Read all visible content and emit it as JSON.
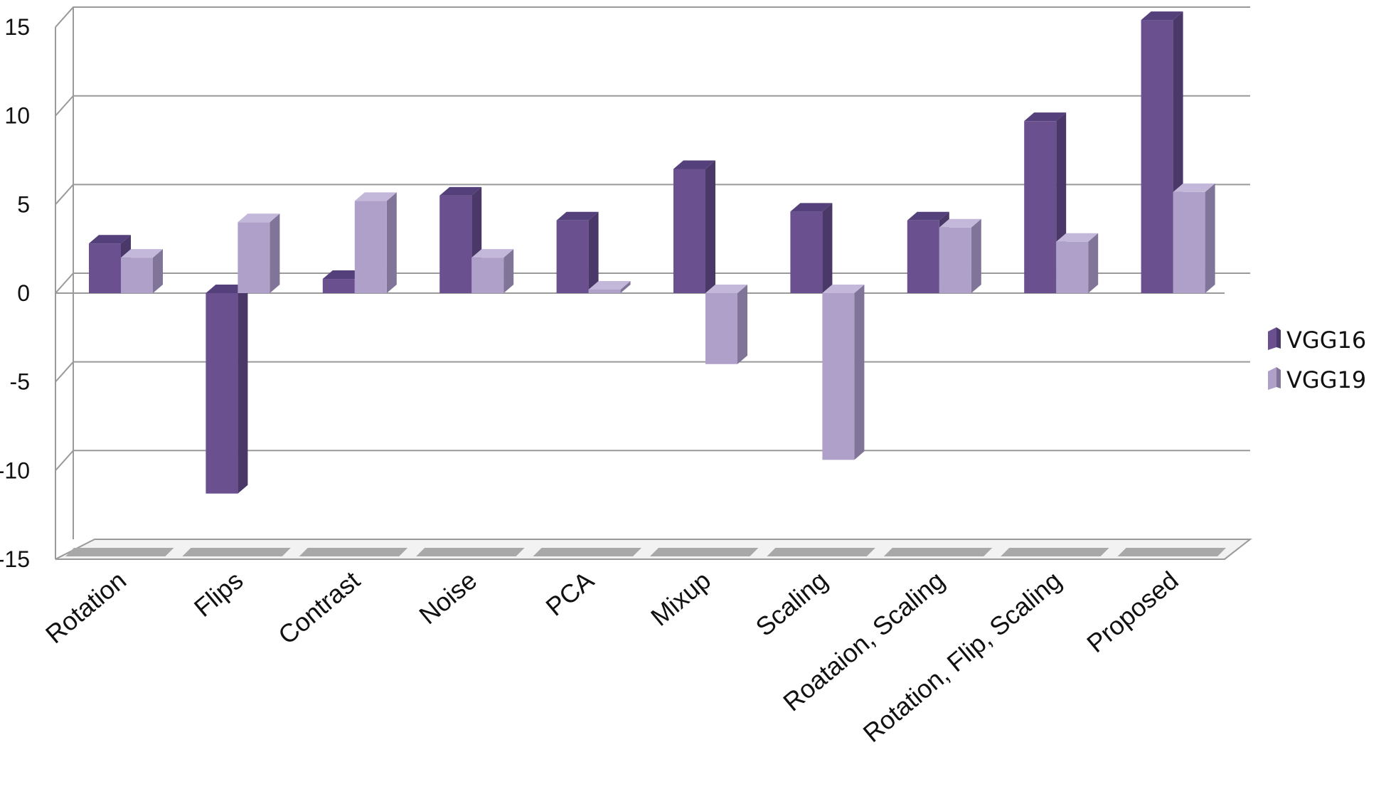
{
  "chart_data": {
    "type": "bar",
    "categories": [
      "Rotation",
      "Flips",
      "Contrast",
      "Noise",
      "PCA",
      "Mixup",
      "Scaling",
      "Roataion, Scaling",
      "Rotation, Flip, Scaling",
      "Proposed"
    ],
    "series": [
      {
        "name": "VGG16",
        "values": [
          2.8,
          -11.3,
          0.8,
          5.5,
          4.1,
          7.0,
          4.6,
          4.1,
          9.7,
          15.4
        ]
      },
      {
        "name": "VGG19",
        "values": [
          2.0,
          4.0,
          5.2,
          2.0,
          0.2,
          -4.0,
          -9.4,
          3.7,
          2.9,
          5.7
        ]
      }
    ],
    "ylim": [
      -15,
      15
    ],
    "yticks": [
      "15",
      "10",
      "5",
      "0",
      "-5",
      "-10",
      "-15"
    ],
    "ytick_values": [
      15,
      10,
      5,
      0,
      -5,
      -10,
      -15
    ],
    "grid": true,
    "legend_position": "right",
    "style": "3d-clustered-column",
    "colors": {
      "VGG16": {
        "front": "#6b5090",
        "side": "#4a3868",
        "top": "#54407a"
      },
      "VGG19": {
        "front": "#aea0c8",
        "side": "#807498",
        "top": "#c4b8da"
      },
      "grid": "#9a9a9a",
      "floor": "#a8a8a8"
    }
  }
}
